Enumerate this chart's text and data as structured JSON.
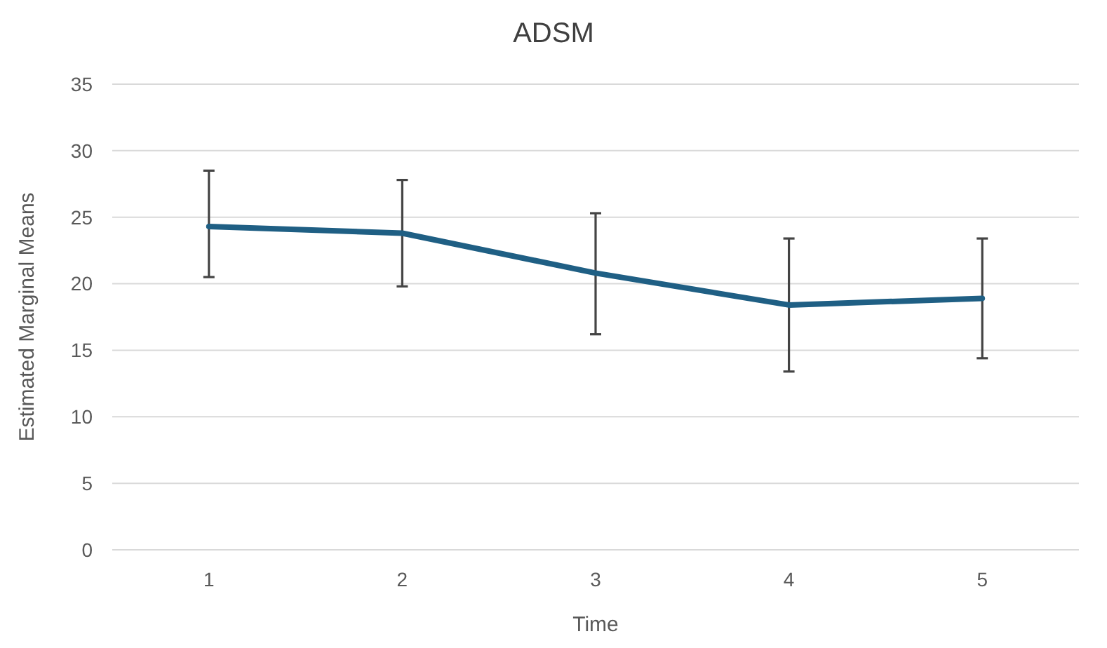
{
  "chart_data": {
    "type": "line",
    "title": "ADSM",
    "xlabel": "Time",
    "ylabel": "Estimated Marginal Means",
    "categories": [
      "1",
      "2",
      "3",
      "4",
      "5"
    ],
    "values": [
      24.3,
      23.8,
      20.8,
      18.4,
      18.9
    ],
    "color": "#1f5f84",
    "errors": [
      [
        20.5,
        28.5
      ],
      [
        19.8,
        27.8
      ],
      [
        16.2,
        25.3
      ],
      [
        13.4,
        23.4
      ],
      [
        14.4,
        23.4
      ]
    ],
    "ylim": [
      0,
      35
    ],
    "yticks": [
      0,
      5,
      10,
      15,
      20,
      25,
      30,
      35
    ],
    "grid": "y",
    "marker": "none"
  }
}
